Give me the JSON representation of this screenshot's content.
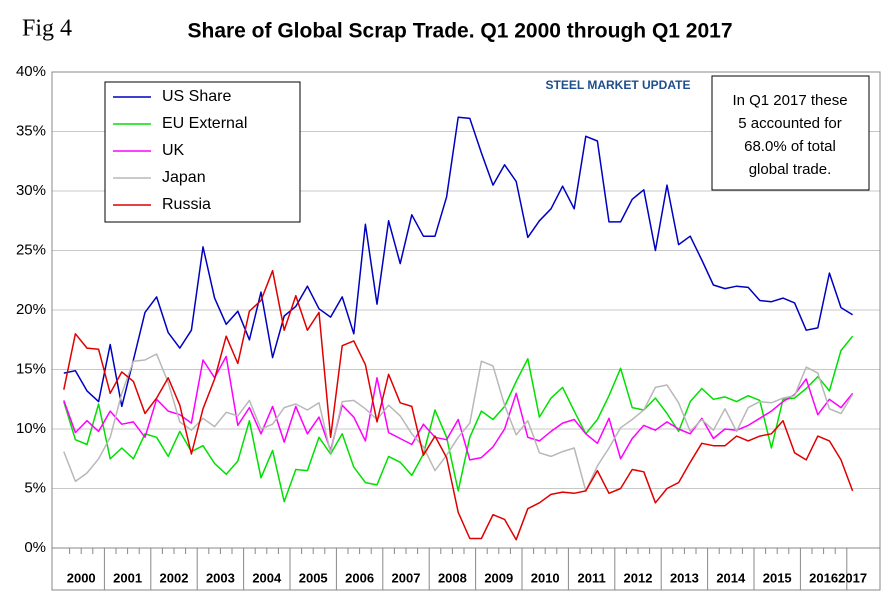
{
  "chart_data": {
    "type": "line",
    "figure_label": "Fig 4",
    "title": "Share of Global Scrap Trade. Q1 2000 through Q1 2017",
    "logo": "STEEL MARKET UPDATE",
    "annotation": [
      "In Q1 2017 these",
      "5 accounted for",
      "68.0% of total",
      "global trade."
    ],
    "categories": [
      "2000",
      null,
      null,
      null,
      "2001",
      null,
      null,
      null,
      "2002",
      null,
      null,
      null,
      "2003",
      null,
      null,
      null,
      "2004",
      null,
      null,
      null,
      "2005",
      null,
      null,
      null,
      "2006",
      null,
      null,
      null,
      "2007",
      null,
      null,
      null,
      "2008",
      null,
      null,
      null,
      "2009",
      null,
      null,
      null,
      "2010",
      null,
      null,
      null,
      "2011",
      null,
      null,
      null,
      "2012",
      null,
      null,
      null,
      "2013",
      null,
      null,
      null,
      "2014",
      null,
      null,
      null,
      "2015",
      null,
      null,
      null,
      "2016",
      null,
      null,
      null,
      "2017"
    ],
    "ylim": [
      0,
      40
    ],
    "yticks": [
      {
        "value": 0,
        "label": "0%"
      },
      {
        "value": 5,
        "label": "5%"
      },
      {
        "value": 10,
        "label": "10%"
      },
      {
        "value": 15,
        "label": "15%"
      },
      {
        "value": 20,
        "label": "20%"
      },
      {
        "value": 25,
        "label": "25%"
      },
      {
        "value": 30,
        "label": "30%"
      },
      {
        "value": 35,
        "label": "35%"
      },
      {
        "value": 40,
        "label": "40%"
      }
    ],
    "grid": true,
    "legend": "upper left",
    "series": [
      {
        "name": "US  Share",
        "color": "#0000c0",
        "values": [
          14.7,
          14.9,
          13.2,
          12.3,
          17.1,
          11.9,
          15.8,
          19.8,
          21.1,
          18.1,
          16.8,
          18.3,
          25.3,
          21.0,
          18.8,
          19.9,
          17.5,
          21.5,
          16.0,
          19.5,
          20.3,
          22.0,
          20.1,
          19.4,
          21.1,
          18.0,
          27.2,
          20.5,
          27.5,
          23.9,
          28.0,
          26.2,
          26.2,
          29.5,
          36.2,
          36.1,
          33.2,
          30.5,
          32.2,
          30.8,
          26.1,
          27.5,
          28.5,
          30.4,
          28.5,
          34.6,
          34.2,
          27.4,
          27.4,
          29.3,
          30.1,
          25.0,
          30.5,
          25.5,
          26.2,
          24.2,
          22.1,
          21.8,
          22.0,
          21.9,
          20.8,
          20.7,
          21.0,
          20.6,
          18.3,
          18.5,
          23.1,
          20.2,
          19.6
        ]
      },
      {
        "name": "EU External",
        "color": "#00e000",
        "values": [
          12.3,
          9.1,
          8.7,
          12.1,
          7.5,
          8.4,
          7.5,
          9.6,
          9.3,
          7.7,
          9.8,
          8.1,
          8.6,
          7.1,
          6.2,
          7.3,
          10.7,
          5.9,
          8.2,
          3.9,
          6.6,
          6.5,
          9.3,
          7.9,
          9.6,
          6.8,
          5.5,
          5.3,
          7.7,
          7.2,
          6.1,
          7.9,
          11.6,
          9.3,
          4.8,
          9.3,
          11.5,
          10.8,
          11.9,
          14.0,
          15.9,
          11.0,
          12.6,
          13.5,
          11.5,
          9.6,
          10.8,
          12.8,
          15.1,
          11.8,
          11.6,
          12.6,
          11.3,
          9.8,
          12.3,
          13.4,
          12.5,
          12.7,
          12.3,
          12.8,
          12.4,
          8.4,
          12.5,
          12.6,
          13.4,
          14.4,
          13.2,
          16.6,
          17.8
        ]
      },
      {
        "name": "UK",
        "color": "#ff00ff",
        "values": [
          12.4,
          9.7,
          10.7,
          9.8,
          11.5,
          10.4,
          10.6,
          9.3,
          12.5,
          11.5,
          11.2,
          10.5,
          15.8,
          14.3,
          16.1,
          10.3,
          11.8,
          9.6,
          11.9,
          8.9,
          11.9,
          9.6,
          11.0,
          8.2,
          12.0,
          11.0,
          9.0,
          14.3,
          9.7,
          9.2,
          8.7,
          10.4,
          9.3,
          9.1,
          10.8,
          7.4,
          7.6,
          8.5,
          10.0,
          13.0,
          9.3,
          9.0,
          9.8,
          10.5,
          10.8,
          9.6,
          8.8,
          10.9,
          7.5,
          9.2,
          10.3,
          9.9,
          10.6,
          10.0,
          9.6,
          10.9,
          9.2,
          10.0,
          9.9,
          10.3,
          10.9,
          11.5,
          12.3,
          12.9,
          14.2,
          11.2,
          12.5,
          11.8,
          13.0
        ]
      },
      {
        "name": "Japan",
        "color": "#b8b8b8",
        "values": [
          8.1,
          5.6,
          6.3,
          7.5,
          9.3,
          13.0,
          15.7,
          15.8,
          16.3,
          13.9,
          10.6,
          9.9,
          10.9,
          10.2,
          11.4,
          11.1,
          12.4,
          10.0,
          10.4,
          11.8,
          12.1,
          11.6,
          12.2,
          8.0,
          12.3,
          12.4,
          11.7,
          10.8,
          12.0,
          11.1,
          9.6,
          8.5,
          6.5,
          7.8,
          9.3,
          10.5,
          15.7,
          15.3,
          12.0,
          9.5,
          10.7,
          8.0,
          7.7,
          8.1,
          8.4,
          4.8,
          6.9,
          8.4,
          10.1,
          10.8,
          11.6,
          13.5,
          13.7,
          12.2,
          9.8,
          10.8,
          9.9,
          11.7,
          9.8,
          11.8,
          12.3,
          12.2,
          12.6,
          12.8,
          15.2,
          14.7,
          11.7,
          11.3,
          12.9
        ]
      },
      {
        "name": "Russia",
        "color": "#e00000",
        "values": [
          13.3,
          18.0,
          16.8,
          16.7,
          13.0,
          14.8,
          14.0,
          11.3,
          12.6,
          14.3,
          12.0,
          7.9,
          11.7,
          14.2,
          17.8,
          15.5,
          19.9,
          20.8,
          23.3,
          18.3,
          21.2,
          18.3,
          19.8,
          9.3,
          17.0,
          17.4,
          15.4,
          10.6,
          14.6,
          12.2,
          11.9,
          7.8,
          9.4,
          7.6,
          3.0,
          0.8,
          0.8,
          2.8,
          2.4,
          0.7,
          3.3,
          3.8,
          4.5,
          4.7,
          4.6,
          4.8,
          6.5,
          4.6,
          5.0,
          6.6,
          6.4,
          3.8,
          5.0,
          5.5,
          7.2,
          8.8,
          8.6,
          8.6,
          9.4,
          9.0,
          9.4,
          9.6,
          10.7,
          8.0,
          7.4,
          9.4,
          9.0,
          7.4,
          4.8
        ]
      }
    ]
  }
}
